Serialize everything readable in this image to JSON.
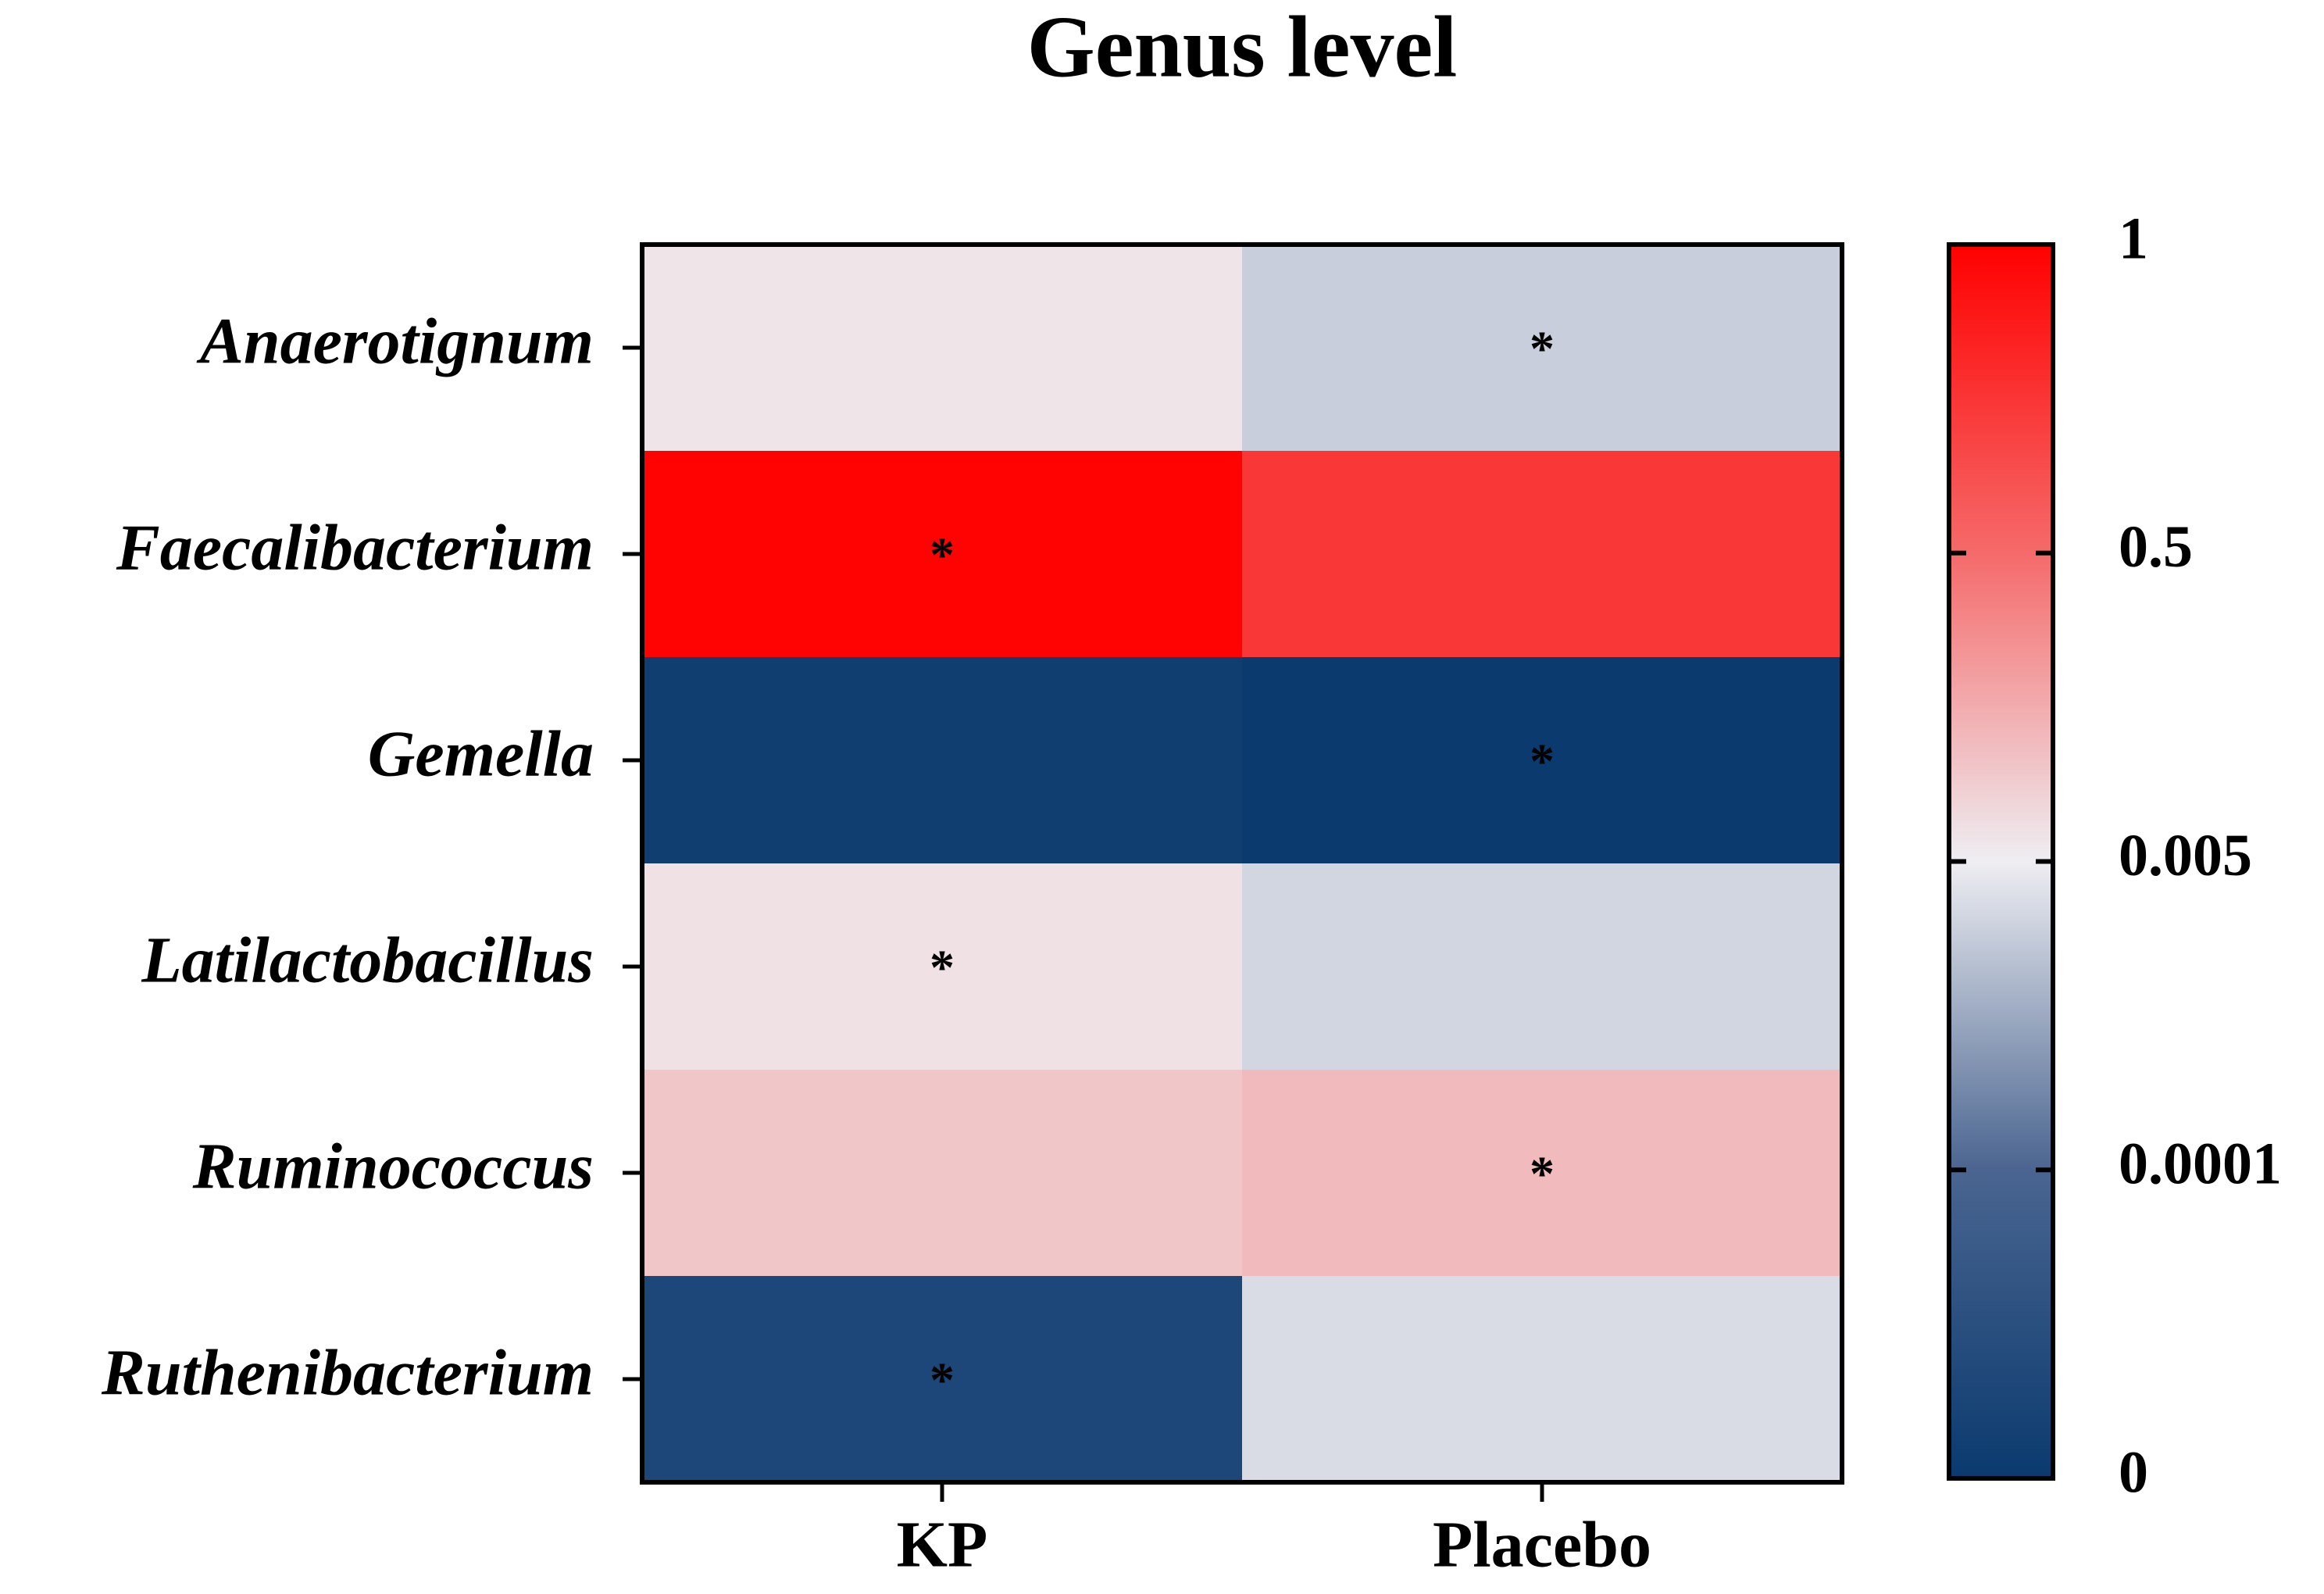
{
  "chart_data": {
    "type": "heatmap",
    "title": "Genus level",
    "rows": [
      "Anaerotignum",
      "Faecalibacterium",
      "Gemella",
      "Latilactobacillus",
      "Ruminococcus",
      "Ruthenibacterium"
    ],
    "columns": [
      "KP",
      "Placebo"
    ],
    "values": [
      [
        0.007,
        0.002
      ],
      [
        0.98,
        0.7
      ],
      [
        1e-05,
        0
      ],
      [
        0.008,
        0.0025
      ],
      [
        0.02,
        0.03
      ],
      [
        3e-05,
        0.003
      ]
    ],
    "cell_labels": [
      [
        null,
        "*"
      ],
      [
        "*",
        null
      ],
      [
        null,
        "*"
      ],
      [
        "*",
        null
      ],
      [
        null,
        "*"
      ],
      [
        "*",
        null
      ]
    ],
    "colorbar_ticks": [
      0,
      0.0001,
      0.005,
      0.5,
      1
    ],
    "colorbar_colors": [
      "#0a3a6e",
      "#4a6590",
      "#eeeef2",
      "#f56a6a",
      "#ff0000"
    ]
  }
}
